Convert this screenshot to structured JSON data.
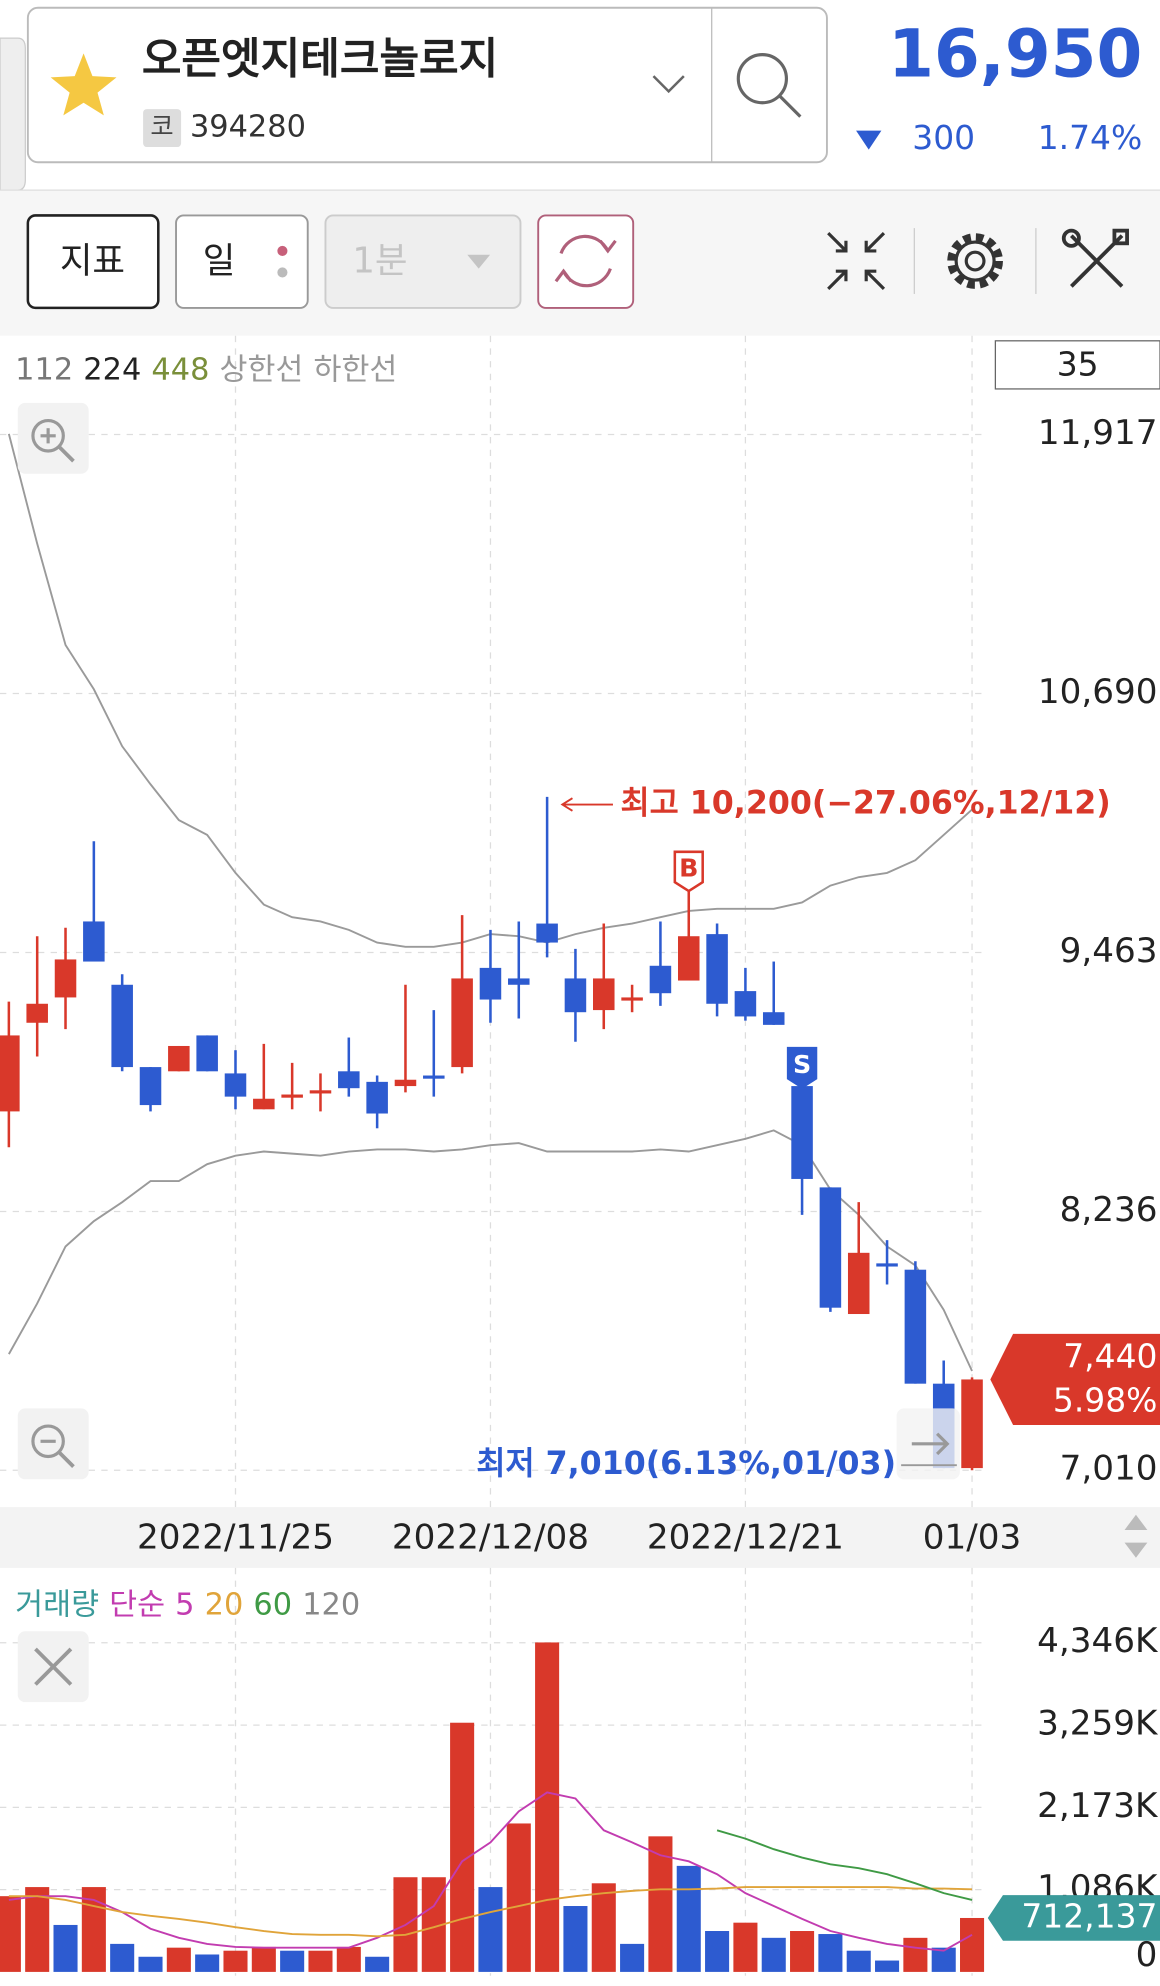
{
  "header": {
    "name": "오픈엣지테크놀로지",
    "code_tag": "코",
    "code": "394280",
    "price": "16,950",
    "change": "300",
    "change_rate": "1.74%"
  },
  "toolbar": {
    "indicator": "지표",
    "period": "일",
    "interval": "1분"
  },
  "chart_data": [
    {
      "type": "candlestick",
      "legend": [
        {
          "label": "112",
          "color": "#777777"
        },
        {
          "label": "224",
          "color": "#222222"
        },
        {
          "label": "448",
          "color": "#7a8f3a"
        },
        {
          "label": "상한선",
          "color": "#999999"
        },
        {
          "label": "하한선",
          "color": "#999999"
        }
      ],
      "count_label": "35",
      "categories": [
        null,
        null,
        null,
        null,
        null,
        null,
        null,
        null,
        "2022/11/25",
        null,
        null,
        null,
        null,
        null,
        null,
        null,
        null,
        "2022/12/08",
        null,
        null,
        null,
        null,
        null,
        null,
        null,
        null,
        "2022/12/21",
        null,
        null,
        null,
        null,
        null,
        null,
        null,
        "01/03"
      ],
      "open": [
        8710,
        9130,
        9250,
        9610,
        9310,
        8920,
        8900,
        9070,
        8890,
        8720,
        8780,
        8800,
        8900,
        8850,
        8830,
        8880,
        8920,
        9390,
        9340,
        9600,
        9340,
        9190,
        9240,
        9400,
        9330,
        9550,
        9280,
        9180,
        8830,
        8350,
        7750,
        7990,
        7960,
        7420,
        7020
      ],
      "high": [
        9230,
        9540,
        9580,
        9990,
        9360,
        8920,
        9020,
        9070,
        9000,
        9030,
        8940,
        8890,
        9060,
        8880,
        9310,
        9190,
        9640,
        9570,
        9610,
        10200,
        9480,
        9600,
        9310,
        9610,
        9760,
        9600,
        9390,
        9420,
        8830,
        8350,
        8280,
        8100,
        8000,
        7530,
        7450
      ],
      "low": [
        8540,
        8970,
        9100,
        9420,
        8900,
        8710,
        8900,
        8900,
        8720,
        8720,
        8720,
        8710,
        8780,
        8630,
        8800,
        8780,
        8890,
        9130,
        9150,
        9440,
        9040,
        9100,
        9180,
        9210,
        9330,
        9160,
        9140,
        9120,
        8220,
        7760,
        7750,
        7890,
        7420,
        7020,
        7010
      ],
      "close": [
        9070,
        9220,
        9430,
        9420,
        8920,
        8740,
        9020,
        8900,
        8780,
        8770,
        8790,
        8810,
        8820,
        8700,
        8860,
        8870,
        9340,
        9240,
        9310,
        9510,
        9180,
        9340,
        9250,
        9270,
        9540,
        9220,
        9160,
        9120,
        8390,
        7780,
        8040,
        7980,
        7420,
        7020,
        7440
      ],
      "up_color": "#d9382a",
      "down_color": "#2d5bd0",
      "bands": [
        {
          "color": "#9a9a9a",
          "values": [
            11920,
            11400,
            10920,
            10710,
            10440,
            10260,
            10090,
            10020,
            9840,
            9690,
            9630,
            9610,
            9570,
            9510,
            9490,
            9490,
            9510,
            9550,
            9540,
            9510,
            9550,
            9580,
            9600,
            9630,
            9660,
            9670,
            9670,
            9670,
            9700,
            9780,
            9820,
            9840,
            9900,
            10020,
            10140
          ]
        },
        {
          "color": "#9a9a9a",
          "values": [
            7560,
            7800,
            8070,
            8190,
            8280,
            8380,
            8380,
            8460,
            8500,
            8520,
            8510,
            8500,
            8520,
            8530,
            8530,
            8520,
            8530,
            8550,
            8560,
            8520,
            8520,
            8520,
            8520,
            8530,
            8520,
            8550,
            8580,
            8620,
            8550,
            8340,
            8220,
            8070,
            7980,
            7770,
            7480
          ]
        }
      ],
      "high_label": "최고 10,200(−27.06%,12/12)",
      "low_label": "최저 7,010(6.13%,01/03)",
      "signals": [
        {
          "label": "B",
          "index": 24,
          "color": "#d9382a"
        },
        {
          "label": "S",
          "index": 28,
          "color": "#2d5bd0"
        }
      ],
      "last_price_label": "7,440",
      "last_change_label": "5.98%",
      "ylim": [
        6835,
        12385
      ],
      "yticks": [
        {
          "value": 7010,
          "label": "7,010"
        },
        {
          "value": 8236,
          "label": "8,236"
        },
        {
          "value": 9463,
          "label": "9,463"
        },
        {
          "value": 10690,
          "label": "10,690"
        },
        {
          "value": 11917,
          "label": "11,917"
        }
      ],
      "grid": true
    },
    {
      "type": "bar",
      "legend_title": {
        "label": "거래량",
        "color": "#3a9a9a"
      },
      "legend_method": {
        "label": "단순",
        "color": "#c23cb0"
      },
      "values": [
        1000,
        1120,
        620,
        1120,
        370,
        200,
        320,
        230,
        280,
        330,
        280,
        280,
        330,
        200,
        1250,
        1250,
        3290,
        1120,
        1960,
        4350,
        870,
        1170,
        370,
        1790,
        1400,
        540,
        650,
        450,
        540,
        500,
        280,
        150,
        450,
        320,
        712.137
      ],
      "value_labels": [
        null,
        null,
        null,
        null,
        null,
        null,
        null,
        null,
        null,
        null,
        null,
        null,
        null,
        null,
        null,
        null,
        null,
        null,
        null,
        null,
        null,
        null,
        null,
        null,
        null,
        null,
        null,
        null,
        null,
        null,
        null,
        null,
        null,
        null,
        "712,137"
      ],
      "label_color": "#3a9a9a",
      "up_color": "#d9382a",
      "down_color": "#2d5bd0",
      "series": [
        {
          "name": "5",
          "color": "#c23cb0",
          "values": [
            950,
            1000,
            1000,
            950,
            790,
            570,
            450,
            370,
            330,
            320,
            320,
            320,
            320,
            450,
            620,
            870,
            1460,
            1710,
            2120,
            2370,
            2290,
            1870,
            1710,
            1540,
            1460,
            1290,
            1040,
            870,
            700,
            540,
            450,
            370,
            320,
            280,
            490
          ]
        },
        {
          "name": "20",
          "color": "#e0a43a",
          "values": [
            1000,
            1000,
            950,
            870,
            790,
            740,
            700,
            650,
            590,
            540,
            500,
            490,
            490,
            470,
            490,
            590,
            700,
            790,
            870,
            950,
            1000,
            1040,
            1070,
            1090,
            1090,
            1100,
            1120,
            1120,
            1120,
            1120,
            1120,
            1120,
            1100,
            1100,
            1090
          ]
        },
        {
          "name": "60",
          "color": "#3f9a45",
          "values": [
            null,
            null,
            null,
            null,
            null,
            null,
            null,
            null,
            null,
            null,
            null,
            null,
            null,
            null,
            null,
            null,
            null,
            null,
            null,
            null,
            null,
            null,
            null,
            null,
            null,
            1870,
            1760,
            1620,
            1510,
            1420,
            1370,
            1290,
            1170,
            1040,
            950
          ]
        }
      ],
      "legend_extra": {
        "label": "120",
        "color": "#888888"
      },
      "ylim": [
        0,
        5200
      ],
      "yticks": [
        0,
        {
          "value": 1086,
          "label": "1,086K"
        },
        {
          "value": 2173,
          "label": "2,173K"
        },
        {
          "value": 3259,
          "label": "3,259K"
        },
        {
          "value": 4346,
          "label": "4,346K"
        }
      ],
      "grid": true
    }
  ]
}
